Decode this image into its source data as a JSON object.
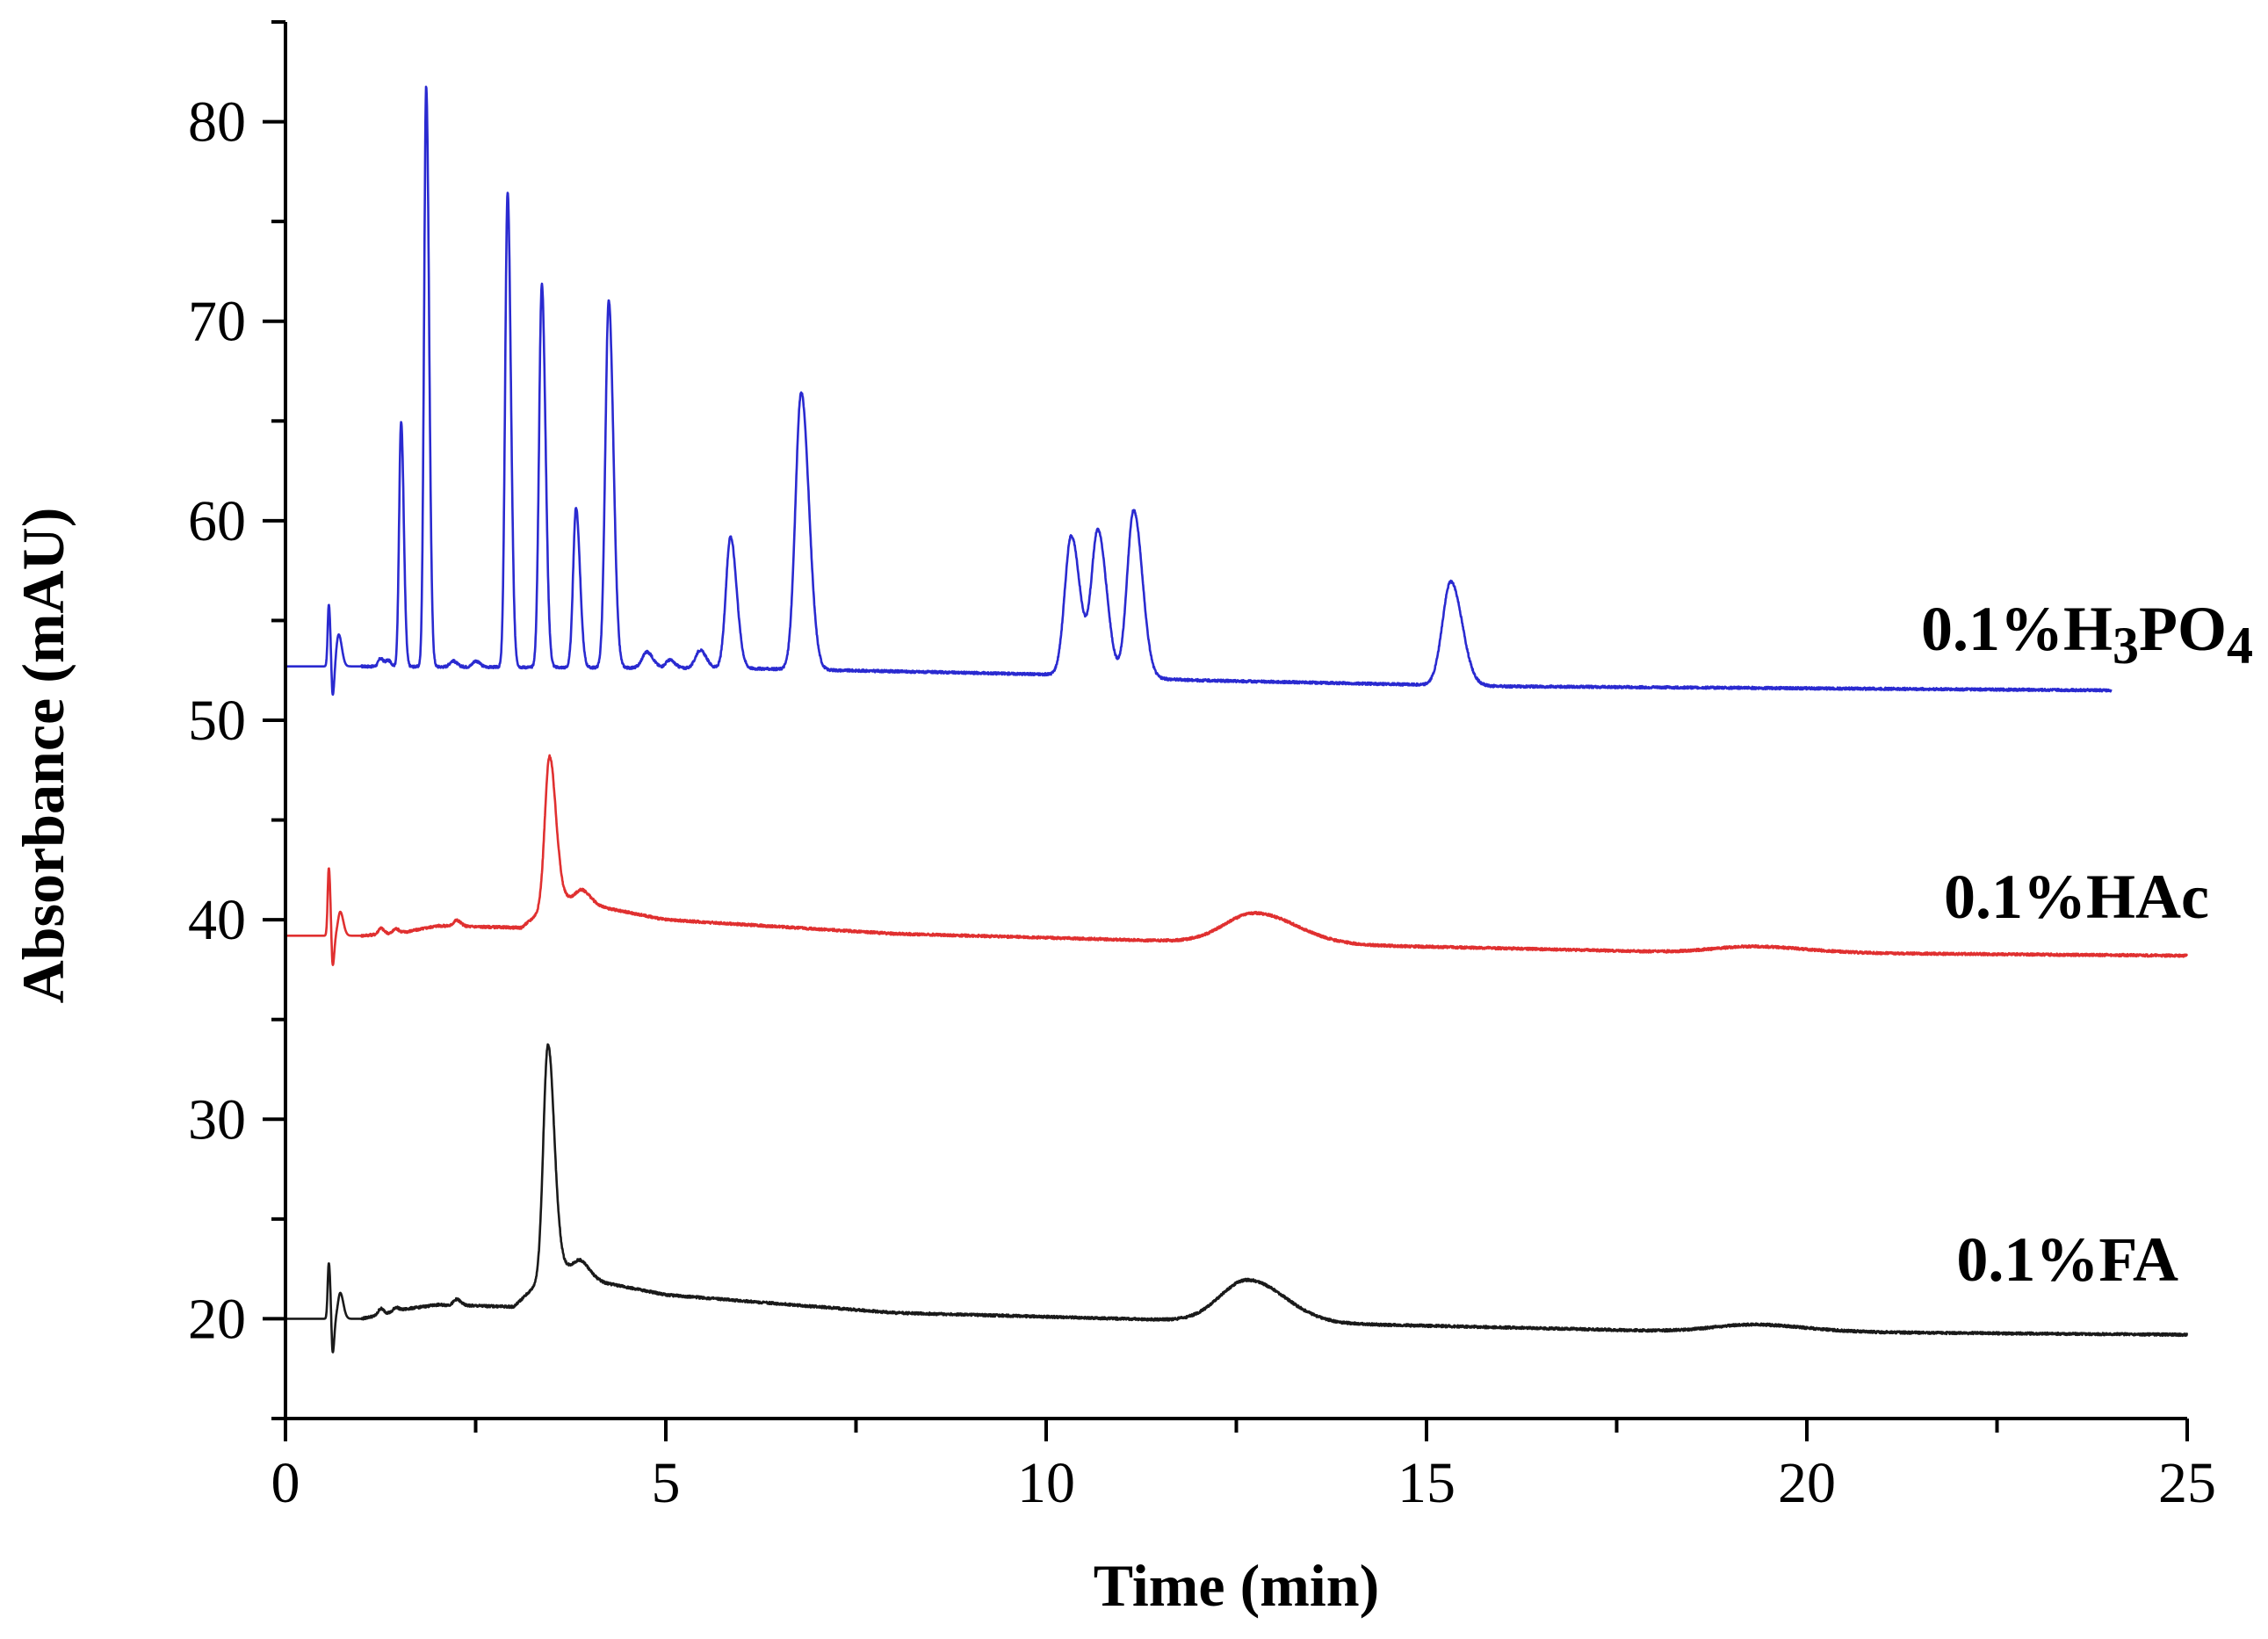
{
  "chart_data": {
    "type": "line",
    "title": "",
    "xlabel": "Time (min)",
    "ylabel": "Absorbance (mAU)",
    "xlim": [
      0,
      25
    ],
    "ylim": [
      15,
      85
    ],
    "xticks": [
      0,
      5,
      10,
      15,
      20,
      25
    ],
    "yticks": [
      20,
      30,
      40,
      50,
      60,
      70,
      80
    ],
    "xticks_minor_step": 2.5,
    "yticks_minor_step": 5,
    "grid": false,
    "series": [
      {
        "name": "0.1%H3PO4",
        "label_main": "0.1%H",
        "label_sub1": "3",
        "label_mid": "PO",
        "label_sub2": "4",
        "color": "#2a2ad0",
        "x_range": [
          0,
          24
        ],
        "baseline": [
          [
            0,
            52.7
          ],
          [
            1.0,
            52.7
          ],
          [
            6.0,
            52.6
          ],
          [
            10.0,
            52.3
          ],
          [
            12.0,
            52.0
          ],
          [
            16.0,
            51.7
          ],
          [
            20.0,
            51.6
          ],
          [
            24.0,
            51.5
          ]
        ],
        "peaks": [
          {
            "t": 0.57,
            "h": 3.1,
            "w": 0.015
          },
          {
            "t": 0.62,
            "h": -1.6,
            "w": 0.015
          },
          {
            "t": 0.7,
            "h": 1.6,
            "w": 0.03
          },
          {
            "t": 1.25,
            "h": 0.4,
            "w": 0.03
          },
          {
            "t": 1.35,
            "h": 0.3,
            "w": 0.03
          },
          {
            "t": 1.52,
            "h": 12.3,
            "w": 0.026
          },
          {
            "t": 1.85,
            "h": 29.1,
            "w": 0.028
          },
          {
            "t": 2.2,
            "h": 0.3,
            "w": 0.04
          },
          {
            "t": 2.5,
            "h": 0.3,
            "w": 0.04
          },
          {
            "t": 2.92,
            "h": 23.8,
            "w": 0.032
          },
          {
            "t": 3.37,
            "h": 19.2,
            "w": 0.036
          },
          {
            "t": 3.82,
            "h": 8.0,
            "w": 0.038
          },
          {
            "t": 4.25,
            "h": 18.4,
            "w": 0.045
          },
          {
            "t": 4.75,
            "h": 0.8,
            "w": 0.06
          },
          {
            "t": 5.05,
            "h": 0.4,
            "w": 0.05
          },
          {
            "t": 5.45,
            "h": 0.9,
            "w": 0.06
          },
          {
            "t": 5.85,
            "h": 6.6,
            "w": 0.06
          },
          {
            "t": 6.78,
            "h": 13.9,
            "w": 0.075
          },
          {
            "t": 10.33,
            "h": 7.0,
            "w": 0.085
          },
          {
            "t": 10.68,
            "h": 7.3,
            "w": 0.085
          },
          {
            "t": 11.15,
            "h": 8.4,
            "w": 0.085
          },
          {
            "t": 15.32,
            "h": 5.2,
            "w": 0.11
          }
        ]
      },
      {
        "name": "0.1%HAc",
        "color": "#e03030",
        "x_range": [
          0,
          25
        ],
        "baseline": [
          [
            0,
            39.2
          ],
          [
            1.0,
            39.2
          ],
          [
            1.6,
            39.4
          ],
          [
            2.0,
            39.7
          ],
          [
            3.1,
            39.6
          ],
          [
            3.6,
            41.2
          ],
          [
            4.2,
            40.6
          ],
          [
            5.0,
            40.0
          ],
          [
            8.0,
            39.3
          ],
          [
            12.0,
            38.9
          ],
          [
            18.0,
            38.4
          ],
          [
            25.0,
            38.2
          ]
        ],
        "peaks": [
          {
            "t": 0.57,
            "h": 3.4,
            "w": 0.015
          },
          {
            "t": 0.62,
            "h": -1.6,
            "w": 0.015
          },
          {
            "t": 0.72,
            "h": 1.2,
            "w": 0.03
          },
          {
            "t": 1.25,
            "h": 0.3,
            "w": 0.03
          },
          {
            "t": 1.45,
            "h": 0.2,
            "w": 0.03
          },
          {
            "t": 2.25,
            "h": 0.3,
            "w": 0.04
          },
          {
            "t": 3.47,
            "h": 7.4,
            "w": 0.06
          },
          {
            "t": 3.9,
            "h": 0.6,
            "w": 0.08
          },
          {
            "t": 12.75,
            "h": 1.5,
            "w": 0.4
          },
          {
            "t": 19.3,
            "h": 0.3,
            "w": 0.5
          }
        ]
      },
      {
        "name": "0.1%FA",
        "color": "#1a1a1a",
        "x_range": [
          0,
          25
        ],
        "baseline": [
          [
            0,
            20.0
          ],
          [
            1.0,
            20.0
          ],
          [
            1.6,
            20.5
          ],
          [
            2.0,
            20.7
          ],
          [
            3.0,
            20.6
          ],
          [
            3.6,
            22.8
          ],
          [
            4.2,
            21.8
          ],
          [
            5.0,
            21.2
          ],
          [
            8.0,
            20.3
          ],
          [
            12.0,
            19.9
          ],
          [
            18.0,
            19.4
          ],
          [
            25.0,
            19.2
          ]
        ],
        "peaks": [
          {
            "t": 0.57,
            "h": 2.8,
            "w": 0.015
          },
          {
            "t": 0.62,
            "h": -1.8,
            "w": 0.015
          },
          {
            "t": 0.72,
            "h": 1.3,
            "w": 0.03
          },
          {
            "t": 1.25,
            "h": 0.3,
            "w": 0.03
          },
          {
            "t": 1.45,
            "h": 0.2,
            "w": 0.03
          },
          {
            "t": 2.25,
            "h": 0.3,
            "w": 0.04
          },
          {
            "t": 3.45,
            "h": 11.5,
            "w": 0.06
          },
          {
            "t": 3.88,
            "h": 0.6,
            "w": 0.08
          },
          {
            "t": 12.65,
            "h": 2.1,
            "w": 0.36
          },
          {
            "t": 19.3,
            "h": 0.35,
            "w": 0.5
          }
        ]
      }
    ]
  }
}
